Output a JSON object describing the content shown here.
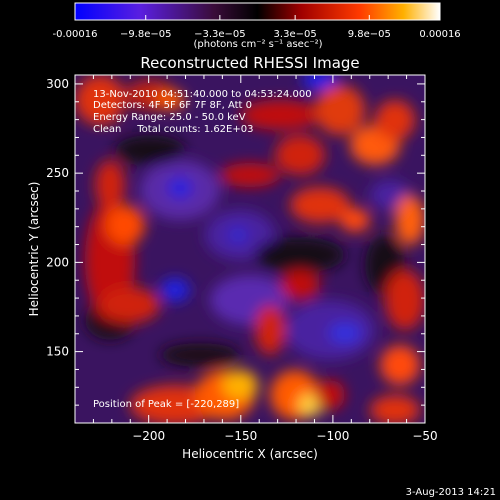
{
  "colorbar": {
    "tick_labels": [
      "-0.00016",
      "−9.8e−05",
      "−3.3e−05",
      "3.3e−05",
      "9.8e−05",
      "0.00016"
    ],
    "tick_values": [
      -0.00016,
      -9.8e-05,
      -3.3e-05,
      3.3e-05,
      9.8e-05,
      0.00016
    ],
    "unit_label": "(photons cm⁻² s⁻¹ asec⁻²)",
    "range": [
      -0.00016,
      0.00016
    ],
    "colors": [
      "#0000ff",
      "#6a1fd0",
      "#2a0a2a",
      "#000000",
      "#c00000",
      "#ff6a00",
      "#ffffff"
    ]
  },
  "info_lines": [
    "13-Nov-2010 04:51:40.000 to 04:53:24.000",
    "Detectors: 4F 5F 6F 7F 8F, Att 0",
    "Energy Range: 25.0 - 50.0 keV",
    "Clean     Total counts: 1.62E+03"
  ],
  "peak_label": "Position of Peak = [-220,289]",
  "footer_date": "3-Aug-2013 14:21",
  "chart_data": {
    "type": "heatmap",
    "title": "Reconstructed RHESSI Image",
    "xlabel": "Heliocentric X (arcsec)",
    "ylabel": "Heliocentric Y (arcsec)",
    "xlim": [
      -240,
      -50
    ],
    "ylim": [
      110,
      305
    ],
    "x_ticks": [
      -200,
      -150,
      -100,
      -50
    ],
    "y_ticks": [
      150,
      200,
      250,
      300
    ],
    "x_tick_labels": [
      "−200",
      "−150",
      "−100",
      "−50"
    ],
    "y_tick_labels": [
      "150",
      "200",
      "250",
      "300"
    ],
    "peak_position": [
      -220,
      289
    ]
  }
}
